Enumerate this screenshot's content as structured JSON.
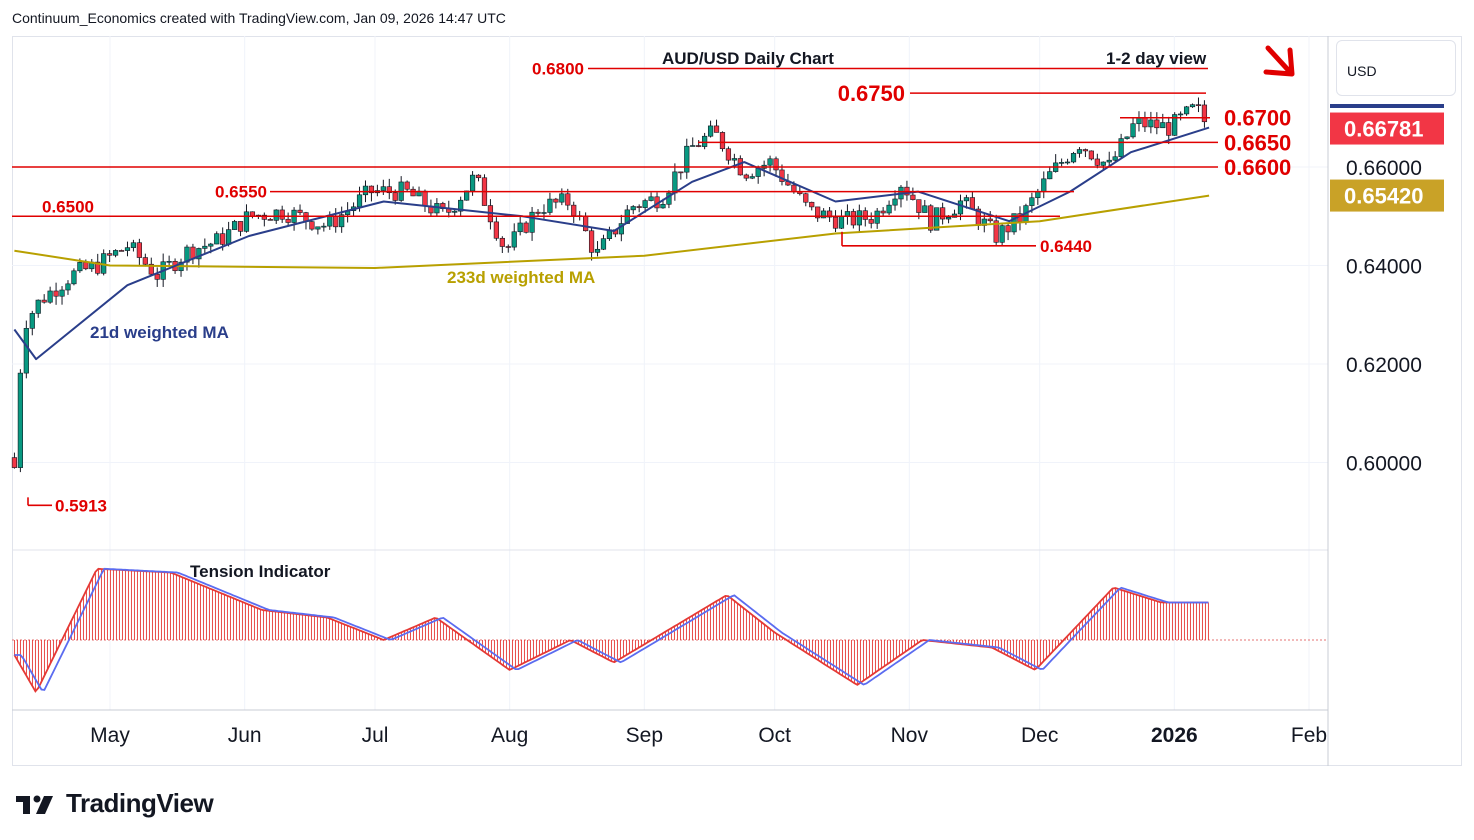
{
  "header": {
    "attribution": "Continuum_Economics created with TradingView.com, Jan 09, 2026 14:47 UTC"
  },
  "brand": {
    "name": "TradingView"
  },
  "price_axis": {
    "currency": "USD",
    "ticks": [
      "0.66000",
      "0.64000",
      "0.62000",
      "0.60000"
    ],
    "last_price": {
      "label": "0.66781",
      "color": "#f23645"
    },
    "ma_price": {
      "label": "0.65420",
      "color": "#c9a227"
    }
  },
  "time_axis": {
    "ticks": [
      "May",
      "Jun",
      "Jul",
      "Aug",
      "Sep",
      "Oct",
      "Nov",
      "Dec",
      "2026",
      "Feb"
    ]
  },
  "annotations": {
    "title": "AUD/USD Daily Chart",
    "view": "1-2 day view",
    "ma21_label": "21d weighted MA",
    "ma233_label": "233d weighted MA",
    "indicator_label": "Tension Indicator",
    "levels": [
      {
        "label": "0.6800",
        "value": 0.68
      },
      {
        "label": "0.6750",
        "value": 0.675
      },
      {
        "label": "0.6700",
        "value": 0.67
      },
      {
        "label": "0.6650",
        "value": 0.665
      },
      {
        "label": "0.6600",
        "value": 0.66
      },
      {
        "label": "0.6550",
        "value": 0.655
      },
      {
        "label": "0.6500",
        "value": 0.65
      },
      {
        "label": "0.6440",
        "value": 0.644
      },
      {
        "label": "0.5913",
        "value": 0.5913
      }
    ]
  },
  "colors": {
    "up": "#089981",
    "down": "#f23645",
    "level": "#e00000",
    "ma21": "#2a3e8a",
    "ma233": "#b8a000",
    "tension_bar": "#e53935",
    "tension_line": "#5b6cf0"
  },
  "chart_data": {
    "type": "candlestick",
    "title": "AUD/USD Daily Chart",
    "ylim": [
      0.586,
      0.687
    ],
    "y_ticks": [
      0.6,
      0.62,
      0.64,
      0.66
    ],
    "grid": true,
    "close_path": [
      [
        "2025-04-09",
        0.599
      ],
      [
        "2025-04-10",
        0.614
      ],
      [
        "2025-04-11",
        0.628
      ],
      [
        "2025-04-15",
        0.633
      ],
      [
        "2025-04-22",
        0.638
      ],
      [
        "2025-04-28",
        0.64
      ],
      [
        "2025-05-05",
        0.644
      ],
      [
        "2025-05-12",
        0.638
      ],
      [
        "2025-05-19",
        0.643
      ],
      [
        "2025-05-26",
        0.645
      ],
      [
        "2025-06-02",
        0.65
      ],
      [
        "2025-06-10",
        0.651
      ],
      [
        "2025-06-20",
        0.648
      ],
      [
        "2025-06-30",
        0.655
      ],
      [
        "2025-07-08",
        0.655
      ],
      [
        "2025-07-17",
        0.65
      ],
      [
        "2025-07-24",
        0.658
      ],
      [
        "2025-07-31",
        0.643
      ],
      [
        "2025-08-08",
        0.652
      ],
      [
        "2025-08-15",
        0.653
      ],
      [
        "2025-08-21",
        0.642
      ],
      [
        "2025-08-29",
        0.652
      ],
      [
        "2025-09-05",
        0.654
      ],
      [
        "2025-09-12",
        0.664
      ],
      [
        "2025-09-17",
        0.667
      ],
      [
        "2025-09-24",
        0.659
      ],
      [
        "2025-09-30",
        0.661
      ],
      [
        "2025-10-09",
        0.651
      ],
      [
        "2025-10-17",
        0.649
      ],
      [
        "2025-10-24",
        0.65
      ],
      [
        "2025-10-30",
        0.657
      ],
      [
        "2025-11-06",
        0.649
      ],
      [
        "2025-11-13",
        0.653
      ],
      [
        "2025-11-21",
        0.646
      ],
      [
        "2025-11-27",
        0.65
      ],
      [
        "2025-12-03",
        0.658
      ],
      [
        "2025-12-10",
        0.665
      ],
      [
        "2025-12-17",
        0.66
      ],
      [
        "2025-12-23",
        0.669
      ],
      [
        "2025-12-31",
        0.668
      ],
      [
        "2026-01-06",
        0.672
      ],
      [
        "2026-01-09",
        0.6678
      ]
    ],
    "series": [
      {
        "name": "21d weighted MA",
        "values": [
          [
            "2025-04-09",
            0.627
          ],
          [
            "2025-04-14",
            0.621
          ],
          [
            "2025-05-05",
            0.636
          ],
          [
            "2025-06-02",
            0.646
          ],
          [
            "2025-07-03",
            0.653
          ],
          [
            "2025-08-04",
            0.65
          ],
          [
            "2025-08-25",
            0.647
          ],
          [
            "2025-09-12",
            0.657
          ],
          [
            "2025-09-24",
            0.661
          ],
          [
            "2025-10-15",
            0.653
          ],
          [
            "2025-11-03",
            0.655
          ],
          [
            "2025-11-24",
            0.649
          ],
          [
            "2025-12-08",
            0.655
          ],
          [
            "2025-12-22",
            0.663
          ],
          [
            "2026-01-09",
            0.668
          ]
        ]
      },
      {
        "name": "233d weighted MA",
        "values": [
          [
            "2025-04-09",
            0.643
          ],
          [
            "2025-05-01",
            0.64
          ],
          [
            "2025-07-01",
            0.6395
          ],
          [
            "2025-09-01",
            0.642
          ],
          [
            "2025-10-15",
            0.6465
          ],
          [
            "2025-12-01",
            0.649
          ],
          [
            "2026-01-09",
            0.6542
          ]
        ]
      },
      {
        "name": "Tension Indicator",
        "values": [
          [
            "2025-04-09",
            -0.2
          ],
          [
            "2025-04-14",
            -0.7
          ],
          [
            "2025-04-28",
            0.95
          ],
          [
            "2025-05-15",
            0.9
          ],
          [
            "2025-06-05",
            0.4
          ],
          [
            "2025-06-20",
            0.3
          ],
          [
            "2025-07-03",
            0.0
          ],
          [
            "2025-07-15",
            0.3
          ],
          [
            "2025-08-01",
            -0.4
          ],
          [
            "2025-08-15",
            0.0
          ],
          [
            "2025-08-25",
            -0.3
          ],
          [
            "2025-09-20",
            0.6
          ],
          [
            "2025-10-01",
            0.1
          ],
          [
            "2025-10-20",
            -0.6
          ],
          [
            "2025-11-04",
            0.0
          ],
          [
            "2025-11-20",
            -0.1
          ],
          [
            "2025-11-30",
            -0.4
          ],
          [
            "2025-12-18",
            0.7
          ],
          [
            "2025-12-29",
            0.5
          ],
          [
            "2026-01-09",
            0.5
          ]
        ]
      }
    ]
  }
}
